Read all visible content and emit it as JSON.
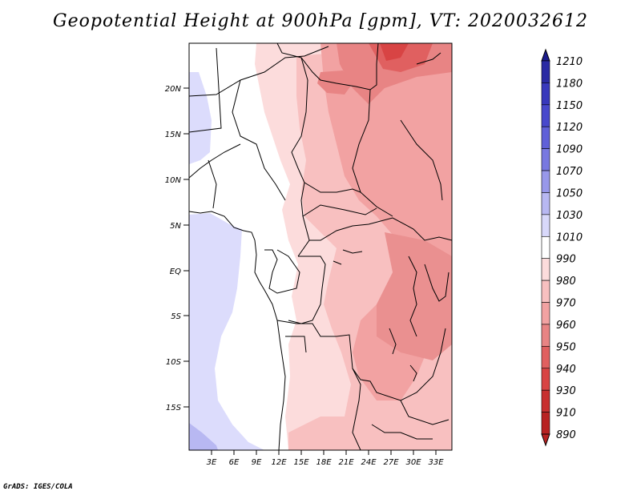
{
  "title": "Geopotential Height at 900hPa [gpm], VT: 2020032612",
  "footer": "GrADS: IGES/COLA",
  "map": {
    "lat_labels": [
      "20N",
      "15N",
      "10N",
      "5N",
      "EQ",
      "5S",
      "10S",
      "15S"
    ],
    "lon_labels": [
      "3E",
      "6E",
      "9E",
      "12E",
      "15E",
      "18E",
      "21E",
      "24E",
      "27E",
      "30E",
      "33E"
    ]
  },
  "colorbar": {
    "levels": [
      "1210",
      "1180",
      "1150",
      "1120",
      "1090",
      "1070",
      "1050",
      "1030",
      "1010",
      "990",
      "980",
      "970",
      "960",
      "950",
      "940",
      "930",
      "910",
      "890"
    ],
    "colors": [
      "#1c1c8c",
      "#2a2aa4",
      "#3838bc",
      "#4848cc",
      "#6060d8",
      "#7878e0",
      "#9898ea",
      "#b8b8f2",
      "#d8d8fa",
      "#ffffff",
      "#fcdcdc",
      "#f8c0c0",
      "#f2a2a2",
      "#e88484",
      "#e06060",
      "#d84444",
      "#c83030",
      "#b82222"
    ]
  }
}
